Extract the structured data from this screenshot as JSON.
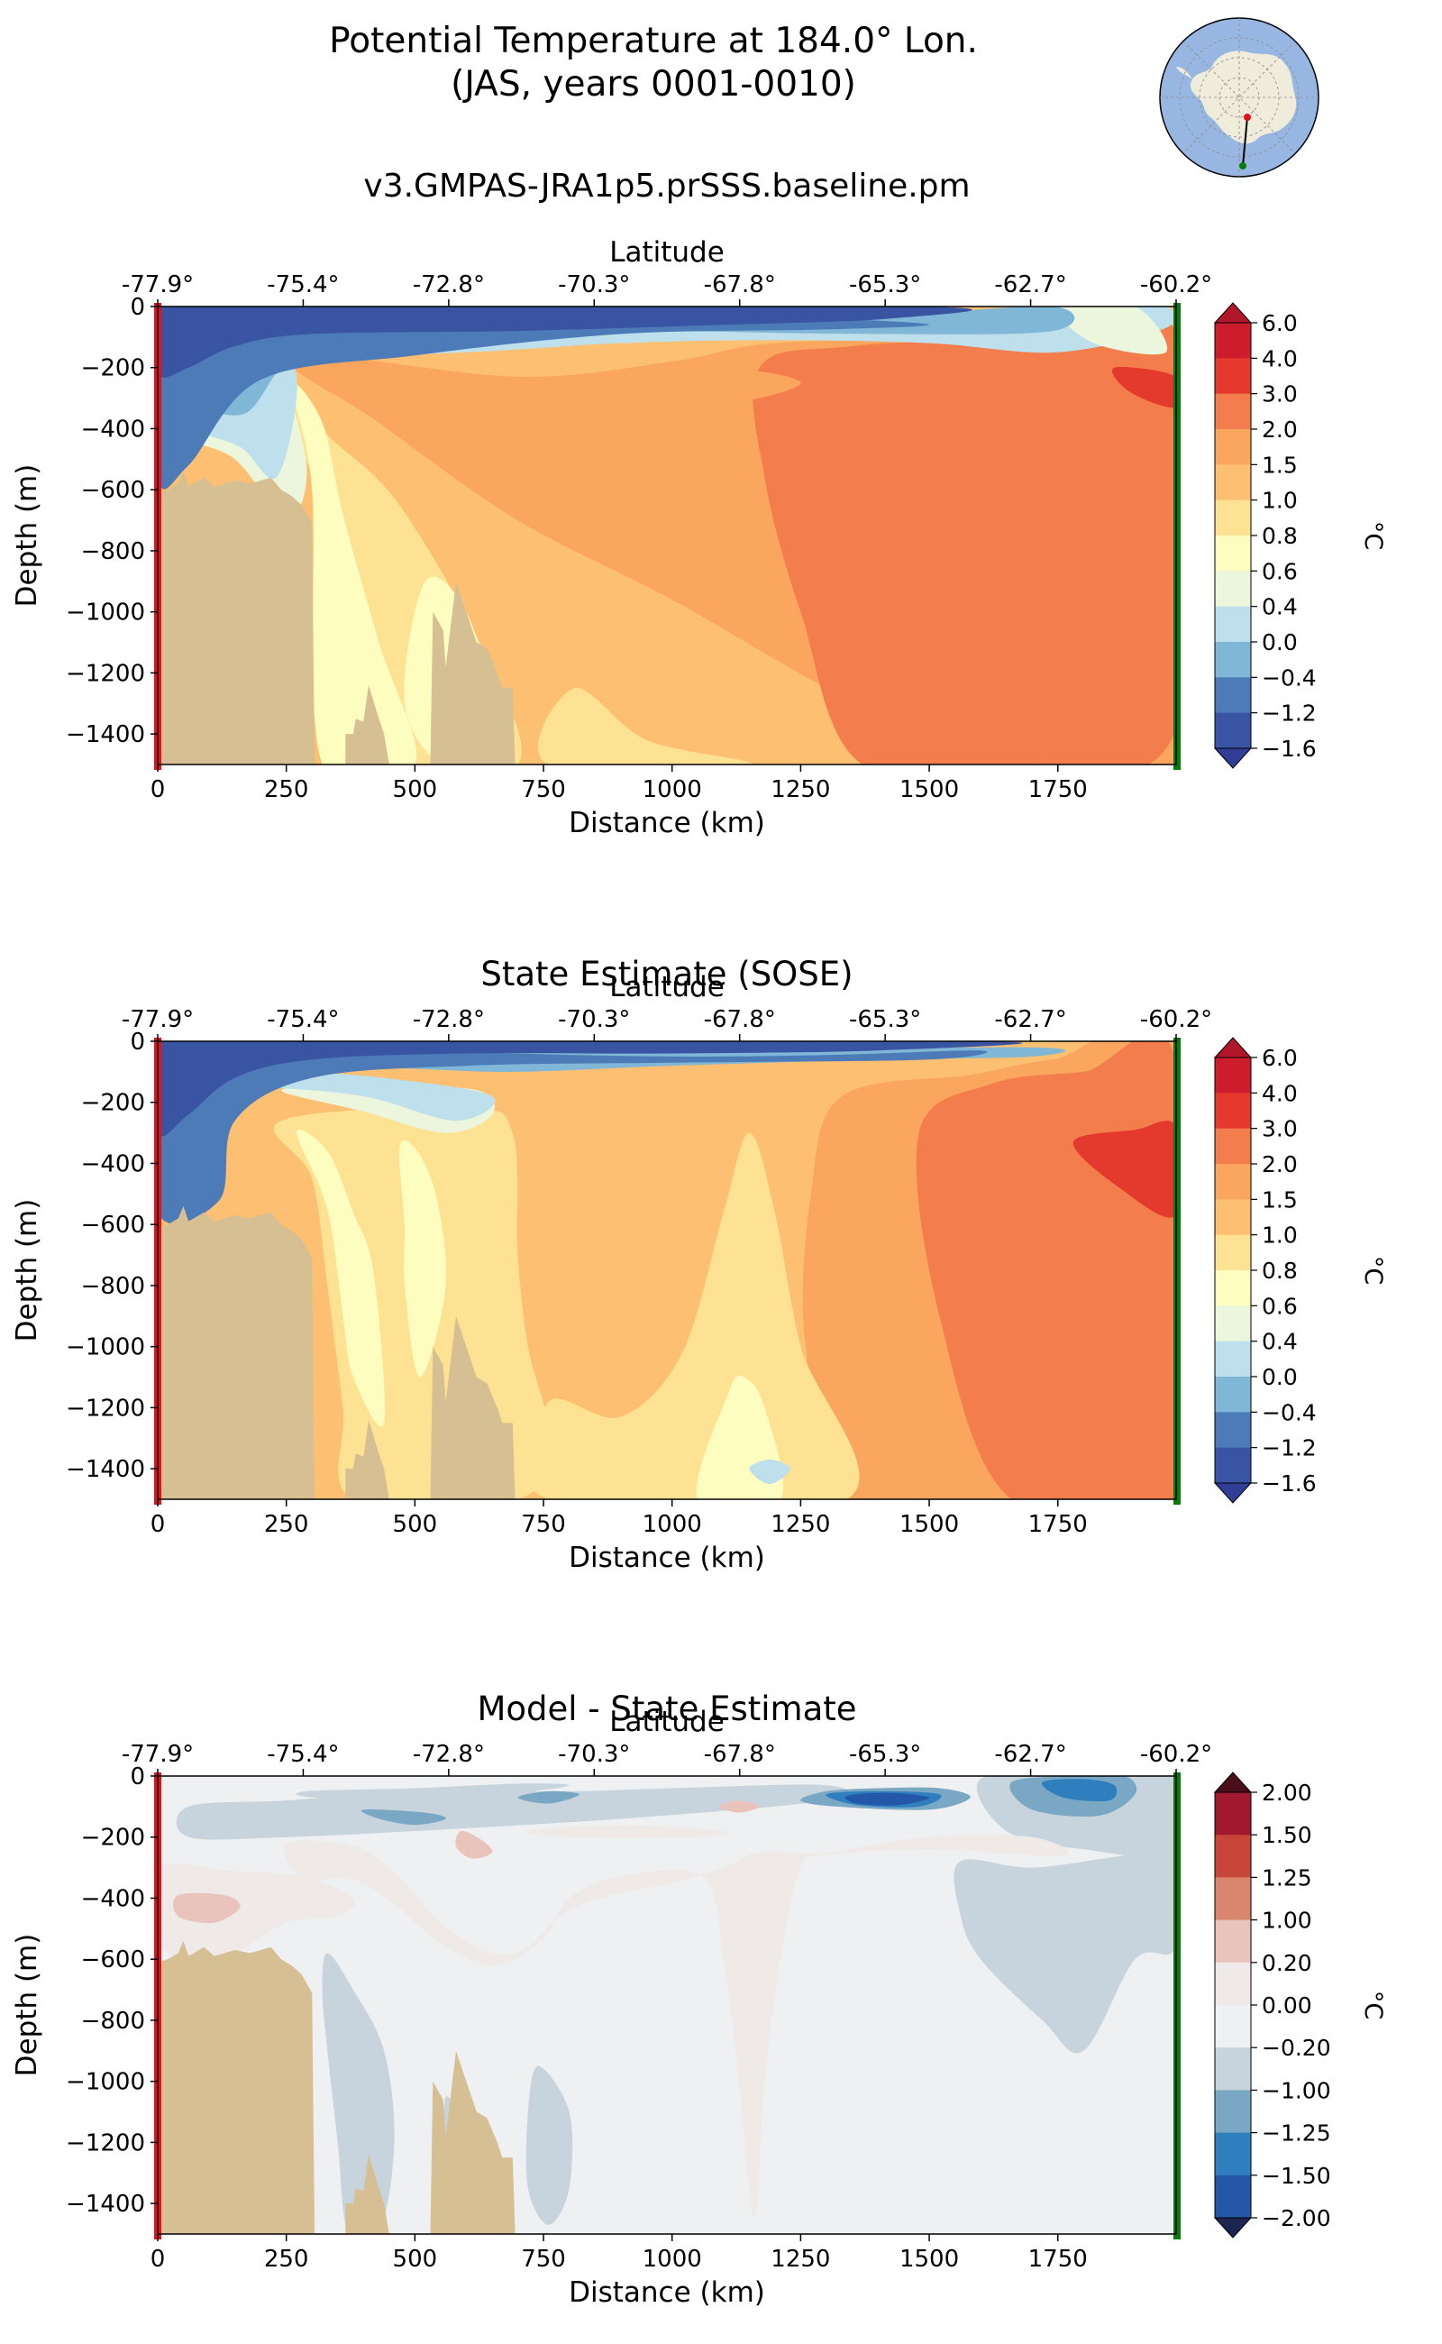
{
  "figure": {
    "title_line1": "Potential Temperature at 184.0° Lon.",
    "title_line2": "(JAS, years 0001-0010)"
  },
  "colors": {
    "land": "#d7bf94",
    "start_marker": "#e0121b",
    "end_marker": "#0a7a0a",
    "map_ocean": "#97b7e2",
    "map_land": "#efecdb",
    "map_start_dot": "#e0121b",
    "map_end_dot": "#0a7a0a"
  },
  "chart_data": [
    {
      "type": "contourf",
      "panel": "model",
      "title": "v3.GMPAS-JRA1p5.prSSS.baseline.pm",
      "xlabel": "Distance (km)",
      "ylabel": "Depth (m)",
      "top_axis_label": "Latitude",
      "xlim": [
        0,
        1980
      ],
      "ylim": [
        -1500,
        0
      ],
      "x_ticks": [
        0,
        250,
        500,
        750,
        1000,
        1250,
        1500,
        1750
      ],
      "y_ticks": [
        0,
        -200,
        -400,
        -600,
        -800,
        -1000,
        -1200,
        -1400
      ],
      "x_tick_labels": [
        "0",
        "250",
        "500",
        "750",
        "1000",
        "1250",
        "1500",
        "1750"
      ],
      "y_tick_labels": [
        "0",
        "−200",
        "−400",
        "−600",
        "−800",
        "−1000",
        "−1200",
        "−1400"
      ],
      "lat_ticks": [
        "-77.9°",
        "-75.4°",
        "-72.8°",
        "-70.3°",
        "-67.8°",
        "-65.3°",
        "-62.7°",
        "-60.2°"
      ],
      "colorbar": {
        "label": "°C",
        "levels": [
          "6.0",
          "4.0",
          "3.0",
          "2.0",
          "1.5",
          "1.0",
          "0.8",
          "0.6",
          "0.4",
          "0.0",
          "−0.4",
          "−1.2",
          "−1.6"
        ],
        "colors": [
          "#cb1d2c",
          "#e43a2d",
          "#f47d4d",
          "#faa65e",
          "#fdbf71",
          "#fee294",
          "#fdfdbf",
          "#ebf6dd",
          "#bde0ec",
          "#80b6d6",
          "#4d7bb8",
          "#3a54a4"
        ],
        "extend_max_color": "#b2162b",
        "extend_min_color": "#313d96"
      }
    },
    {
      "type": "contourf",
      "panel": "sose",
      "title": "State Estimate (SOSE)",
      "xlabel": "Distance (km)",
      "ylabel": "Depth (m)",
      "top_axis_label": "Latitude",
      "xlim": [
        0,
        1980
      ],
      "ylim": [
        -1500,
        0
      ],
      "x_ticks": [
        0,
        250,
        500,
        750,
        1000,
        1250,
        1500,
        1750
      ],
      "y_ticks": [
        0,
        -200,
        -400,
        -600,
        -800,
        -1000,
        -1200,
        -1400
      ],
      "x_tick_labels": [
        "0",
        "250",
        "500",
        "750",
        "1000",
        "1250",
        "1500",
        "1750"
      ],
      "y_tick_labels": [
        "0",
        "−200",
        "−400",
        "−600",
        "−800",
        "−1000",
        "−1200",
        "−1400"
      ],
      "lat_ticks": [
        "-77.9°",
        "-75.4°",
        "-72.8°",
        "-70.3°",
        "-67.8°",
        "-65.3°",
        "-62.7°",
        "-60.2°"
      ],
      "colorbar": {
        "label": "°C",
        "levels": [
          "6.0",
          "4.0",
          "3.0",
          "2.0",
          "1.5",
          "1.0",
          "0.8",
          "0.6",
          "0.4",
          "0.0",
          "−0.4",
          "−1.2",
          "−1.6"
        ],
        "colors": [
          "#cb1d2c",
          "#e43a2d",
          "#f47d4d",
          "#faa65e",
          "#fdbf71",
          "#fee294",
          "#fdfdbf",
          "#ebf6dd",
          "#bde0ec",
          "#80b6d6",
          "#4d7bb8",
          "#3a54a4"
        ],
        "extend_max_color": "#b2162b",
        "extend_min_color": "#313d96"
      }
    },
    {
      "type": "contourf",
      "panel": "difference",
      "title": "Model - State Estimate",
      "xlabel": "Distance (km)",
      "ylabel": "Depth (m)",
      "top_axis_label": "Latitude",
      "xlim": [
        0,
        1980
      ],
      "ylim": [
        -1500,
        0
      ],
      "x_ticks": [
        0,
        250,
        500,
        750,
        1000,
        1250,
        1500,
        1750
      ],
      "y_ticks": [
        0,
        -200,
        -400,
        -600,
        -800,
        -1000,
        -1200,
        -1400
      ],
      "x_tick_labels": [
        "0",
        "250",
        "500",
        "750",
        "1000",
        "1250",
        "1500",
        "1750"
      ],
      "y_tick_labels": [
        "0",
        "−200",
        "−400",
        "−600",
        "−800",
        "−1000",
        "−1200",
        "−1400"
      ],
      "lat_ticks": [
        "-77.9°",
        "-75.4°",
        "-72.8°",
        "-70.3°",
        "-67.8°",
        "-65.3°",
        "-62.7°",
        "-60.2°"
      ],
      "colorbar": {
        "label": "°C",
        "levels": [
          "2.00",
          "1.50",
          "1.25",
          "1.00",
          "0.20",
          "0.00",
          "−0.20",
          "−1.00",
          "−1.25",
          "−1.50",
          "−2.00"
        ],
        "colors": [
          "#a1192e",
          "#c6473a",
          "#d8866e",
          "#e8c4bc",
          "#efe9e8",
          "#eef0f1",
          "#c7d4dd",
          "#7aa7c4",
          "#2f7fbe",
          "#2457a8"
        ],
        "extend_max_color": "#4b0f1c",
        "extend_min_color": "#1c2450"
      }
    }
  ]
}
